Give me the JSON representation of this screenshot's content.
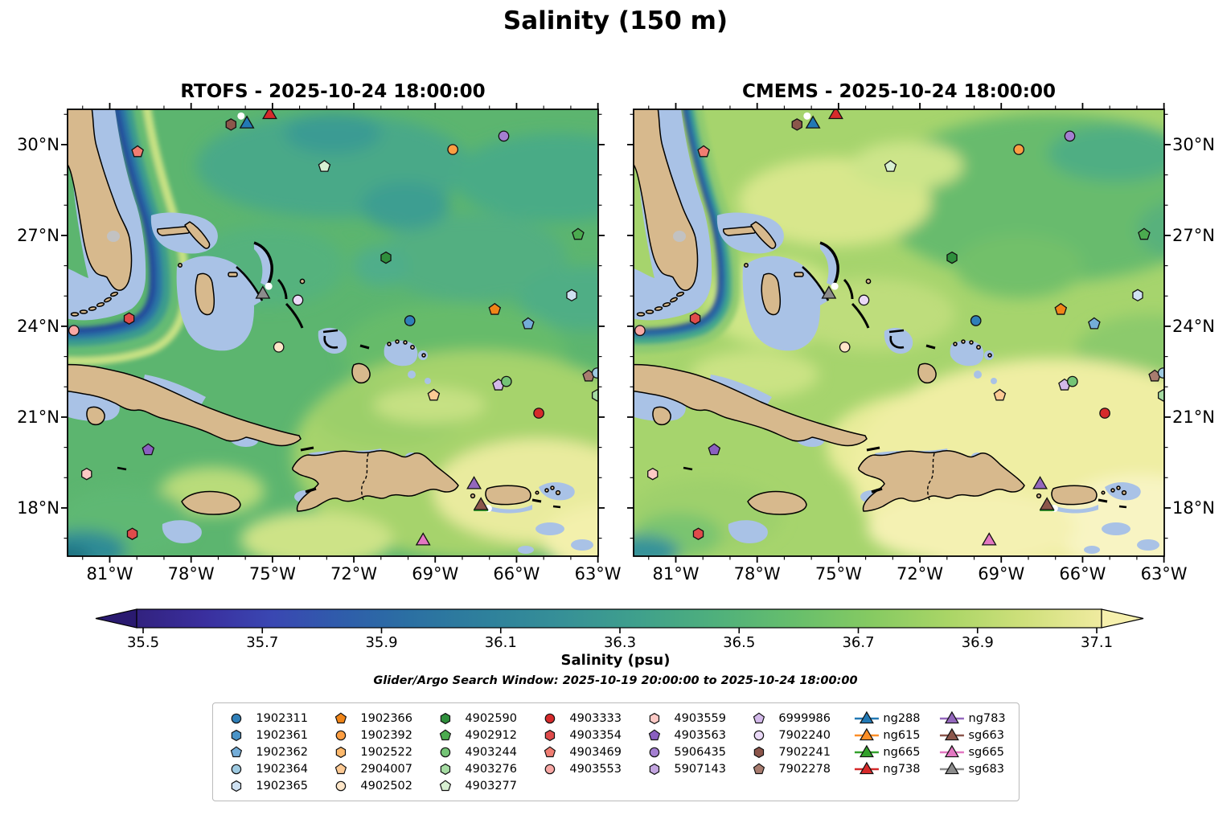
{
  "figure": {
    "title": "Salinity (150 m)"
  },
  "panels": [
    {
      "id": "rtofs",
      "title": "RTOFS - 2025-10-24 18:00:00"
    },
    {
      "id": "cmems",
      "title": "CMEMS - 2025-10-24 18:00:00"
    }
  ],
  "axes": {
    "x_tick_labels": [
      "81°W",
      "78°W",
      "75°W",
      "72°W",
      "69°W",
      "66°W",
      "63°W"
    ],
    "y_tick_labels": [
      "30°N",
      "27°N",
      "24°N",
      "21°N",
      "18°N"
    ]
  },
  "colorbar": {
    "tick_labels": [
      "35.5",
      "35.7",
      "35.9",
      "36.1",
      "36.3",
      "36.5",
      "36.7",
      "36.9",
      "37.1"
    ],
    "label": "Salinity (psu)",
    "note": "Glider/Argo Search Window: 2025-10-19 20:00:00 to 2025-10-24 18:00:00",
    "colormap_name": "haline-like",
    "low_end_color": "#2a1a70",
    "high_end_color": "#f6f0ad"
  },
  "legend": {
    "columns": [
      {
        "kind": "floats",
        "entries": [
          {
            "label": "1902311",
            "shape": "circle",
            "color": "#2f7fb8"
          },
          {
            "label": "1902361",
            "shape": "hexagon",
            "color": "#4a94c8"
          },
          {
            "label": "1902362",
            "shape": "pentagon",
            "color": "#74add8"
          },
          {
            "label": "1902364",
            "shape": "circle",
            "color": "#9ecae1"
          },
          {
            "label": "1902365",
            "shape": "hexagon",
            "color": "#cfe1f2"
          }
        ]
      },
      {
        "kind": "floats",
        "entries": [
          {
            "label": "1902366",
            "shape": "pentagon",
            "color": "#f08518"
          },
          {
            "label": "1902392",
            "shape": "circle",
            "color": "#fd9e42"
          },
          {
            "label": "1902522",
            "shape": "hexagon",
            "color": "#fdb96c"
          },
          {
            "label": "2904007",
            "shape": "pentagon",
            "color": "#fdca94"
          },
          {
            "label": "4902502",
            "shape": "circle",
            "color": "#fee6c8"
          }
        ]
      },
      {
        "kind": "floats",
        "entries": [
          {
            "label": "4902590",
            "shape": "hexagon",
            "color": "#2f8f3c"
          },
          {
            "label": "4902912",
            "shape": "pentagon",
            "color": "#4bab4f"
          },
          {
            "label": "4903244",
            "shape": "circle",
            "color": "#74c476"
          },
          {
            "label": "4903276",
            "shape": "hexagon",
            "color": "#a5dba2"
          },
          {
            "label": "4903277",
            "shape": "pentagon",
            "color": "#d8f0d2"
          }
        ]
      },
      {
        "kind": "floats",
        "entries": [
          {
            "label": "4903333",
            "shape": "circle",
            "color": "#d62a2b"
          },
          {
            "label": "4903354",
            "shape": "hexagon",
            "color": "#e04b4b"
          },
          {
            "label": "4903469",
            "shape": "pentagon",
            "color": "#f07d72"
          },
          {
            "label": "4903553",
            "shape": "circle",
            "color": "#f9a8a5"
          }
        ]
      },
      {
        "kind": "floats",
        "entries": [
          {
            "label": "4903559",
            "shape": "hexagon",
            "color": "#fcc9c5"
          },
          {
            "label": "4903563",
            "shape": "pentagon",
            "color": "#8a5fc0"
          },
          {
            "label": "5906435",
            "shape": "circle",
            "color": "#a47fd1"
          },
          {
            "label": "5907143",
            "shape": "hexagon",
            "color": "#c3a5e0"
          }
        ]
      },
      {
        "kind": "floats",
        "entries": [
          {
            "label": "6999986",
            "shape": "pentagon",
            "color": "#d3b9ea"
          },
          {
            "label": "7902240",
            "shape": "circle",
            "color": "#ead9f7"
          },
          {
            "label": "7902241",
            "shape": "hexagon",
            "color": "#8c564b"
          },
          {
            "label": "7902278",
            "shape": "pentagon",
            "color": "#a87c6f"
          }
        ]
      },
      {
        "kind": "gliders",
        "entries": [
          {
            "label": "ng288",
            "shape": "glider",
            "color": "#2279b5"
          },
          {
            "label": "ng615",
            "shape": "glider",
            "color": "#fd8e26"
          },
          {
            "label": "ng665",
            "shape": "glider",
            "color": "#33a12c"
          },
          {
            "label": "ng738",
            "shape": "glider",
            "color": "#d62a2b"
          }
        ]
      },
      {
        "kind": "gliders",
        "entries": [
          {
            "label": "ng783",
            "shape": "glider",
            "color": "#9467bd"
          },
          {
            "label": "sg663",
            "shape": "glider",
            "color": "#8c564b"
          },
          {
            "label": "sg665",
            "shape": "glider",
            "color": "#e377c2"
          },
          {
            "label": "sg683",
            "shape": "glider",
            "color": "#8c8c8c"
          }
        ]
      }
    ]
  },
  "chart_data": {
    "type": "heatmap",
    "subtype": "geographic-filled-contour-comparison",
    "variable": "Salinity",
    "depth_m": 150,
    "units": "psu",
    "valid_time": "2025-10-24 18:00:00",
    "models": [
      "RTOFS",
      "CMEMS"
    ],
    "region": "Florida / Bahamas / Cuba / Hispaniola / Puerto Rico",
    "lon_ticks_deg_w": [
      81,
      78,
      75,
      72,
      69,
      66,
      63
    ],
    "lat_ticks_deg_n": [
      30,
      27,
      24,
      21,
      18
    ],
    "colorbar_range_psu": [
      35.4,
      37.2
    ],
    "colorbar_ticks_psu": [
      35.5,
      35.7,
      35.9,
      36.1,
      36.3,
      36.5,
      36.7,
      36.9,
      37.1
    ],
    "search_window": "2025-10-19 20:00:00 to 2025-10-24 18:00:00",
    "argo_float_ids": [
      "1902311",
      "1902361",
      "1902362",
      "1902364",
      "1902365",
      "1902366",
      "1902392",
      "1902522",
      "2904007",
      "4902502",
      "4902590",
      "4902912",
      "4903244",
      "4903276",
      "4903277",
      "4903333",
      "4903354",
      "4903469",
      "4903553",
      "4903559",
      "4903563",
      "5906435",
      "5907143",
      "6999986",
      "7902240",
      "7902241",
      "7902278"
    ],
    "glider_ids": [
      "ng288",
      "ng615",
      "ng665",
      "ng738",
      "ng783",
      "sg663",
      "sg665",
      "sg683"
    ],
    "observation_markers": [
      {
        "id": "4903469",
        "shape": "pentagon",
        "color": "#f07d72",
        "fx": 0.132,
        "fy": 0.095
      },
      {
        "id": "7902241",
        "shape": "hexagon",
        "color": "#8c564b",
        "fx": 0.308,
        "fy": 0.034
      },
      {
        "id": "surfacing-fragment",
        "shape": "whitedot",
        "color": "#ffffff",
        "fx": 0.327,
        "fy": 0.015
      },
      {
        "id": "ng288",
        "shape": "triangle",
        "color": "#2279b5",
        "fx": 0.338,
        "fy": 0.033
      },
      {
        "id": "ng738",
        "shape": "triangle",
        "color": "#d62a2b",
        "fx": 0.381,
        "fy": 0.012
      },
      {
        "id": "4903277",
        "shape": "pentagon",
        "color": "#d8f0d2",
        "fx": 0.484,
        "fy": 0.128
      },
      {
        "id": "1902392",
        "shape": "circle",
        "color": "#fd9e42",
        "fx": 0.726,
        "fy": 0.09
      },
      {
        "id": "5906435",
        "shape": "circle",
        "color": "#a47fd1",
        "fx": 0.822,
        "fy": 0.06
      },
      {
        "id": "4902912",
        "shape": "pentagon",
        "color": "#4bab4f",
        "fx": 0.962,
        "fy": 0.28
      },
      {
        "id": "4902590",
        "shape": "hexagon",
        "color": "#2f8f3c",
        "fx": 0.6,
        "fy": 0.332
      },
      {
        "id": "surfacing-fragment",
        "shape": "whitedot",
        "color": "#ffffff",
        "fx": 0.379,
        "fy": 0.396
      },
      {
        "id": "sg683",
        "shape": "triangle",
        "color": "#8c8c8c",
        "fx": 0.368,
        "fy": 0.414
      },
      {
        "id": "7902240",
        "shape": "circle",
        "color": "#ead9f7",
        "fx": 0.434,
        "fy": 0.427
      },
      {
        "id": "1902311",
        "shape": "circle",
        "color": "#2f7fb8",
        "fx": 0.645,
        "fy": 0.473
      },
      {
        "id": "1902366",
        "shape": "pentagon",
        "color": "#f08518",
        "fx": 0.805,
        "fy": 0.448
      },
      {
        "id": "1902362",
        "shape": "pentagon",
        "color": "#74add8",
        "fx": 0.868,
        "fy": 0.48
      },
      {
        "id": "1902365",
        "shape": "hexagon",
        "color": "#cfe1f2",
        "fx": 0.95,
        "fy": 0.416
      },
      {
        "id": "4903553",
        "shape": "circle",
        "color": "#f9a8a5",
        "fx": 0.012,
        "fy": 0.495
      },
      {
        "id": "4903354",
        "shape": "hexagon",
        "color": "#e04b4b",
        "fx": 0.116,
        "fy": 0.468
      },
      {
        "id": "4902502",
        "shape": "circle",
        "color": "#fee6c8",
        "fx": 0.398,
        "fy": 0.532
      },
      {
        "id": "2904007",
        "shape": "pentagon",
        "color": "#fdca94",
        "fx": 0.69,
        "fy": 0.64
      },
      {
        "id": "6999986",
        "shape": "pentagon",
        "color": "#d3b9ea",
        "fx": 0.812,
        "fy": 0.617
      },
      {
        "id": "4903244",
        "shape": "circle",
        "color": "#74c476",
        "fx": 0.827,
        "fy": 0.609
      },
      {
        "id": "4903333",
        "shape": "circle",
        "color": "#d62a2b",
        "fx": 0.888,
        "fy": 0.68
      },
      {
        "id": "7902278",
        "shape": "pentagon",
        "color": "#a87c6f",
        "fx": 0.982,
        "fy": 0.597
      },
      {
        "id": "1902364",
        "shape": "circle",
        "color": "#9ecae1",
        "fx": 0.998,
        "fy": 0.59
      },
      {
        "id": "4903276",
        "shape": "hexagon",
        "color": "#a5dba2",
        "fx": 0.998,
        "fy": 0.64
      },
      {
        "id": "4903563",
        "shape": "pentagon",
        "color": "#8a5fc0",
        "fx": 0.152,
        "fy": 0.762
      },
      {
        "id": "4903559",
        "shape": "hexagon",
        "color": "#fcc9c5",
        "fx": 0.036,
        "fy": 0.816
      },
      {
        "id": "4903354",
        "shape": "hexagon",
        "color": "#e04b4b",
        "fx": 0.122,
        "fy": 0.95
      },
      {
        "id": "ng783",
        "shape": "triangle",
        "color": "#9467bd",
        "fx": 0.766,
        "fy": 0.84
      },
      {
        "id": "surfacing-fragment",
        "shape": "whitedot",
        "color": "#ffffff",
        "fx": 0.793,
        "fy": 0.893
      },
      {
        "id": "ng665-track",
        "shape": "line",
        "color": "#33a12c",
        "fx": 0.779,
        "fy": 0.897
      },
      {
        "id": "sg663",
        "shape": "triangle",
        "color": "#8c564b",
        "fx": 0.779,
        "fy": 0.887
      },
      {
        "id": "sg665",
        "shape": "triangle",
        "color": "#e377c2",
        "fx": 0.67,
        "fy": 0.966
      }
    ]
  }
}
